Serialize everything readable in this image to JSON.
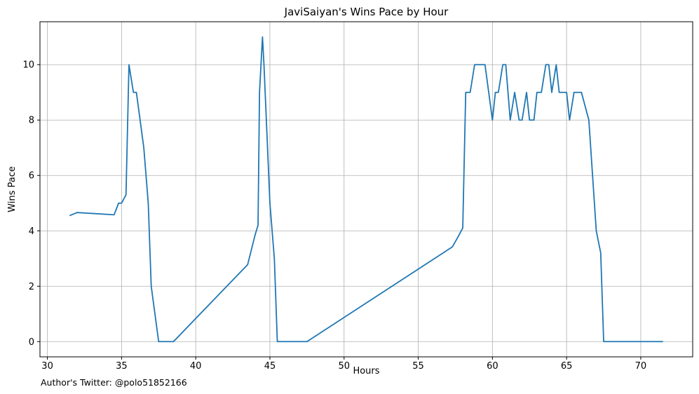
{
  "chart_data": {
    "type": "line",
    "title": "JaviSaiyan's Wins Pace by Hour",
    "xlabel": "Hours",
    "ylabel": "Wins Pace",
    "xlim": [
      29.5,
      73.5
    ],
    "ylim": [
      -0.55,
      11.55
    ],
    "xticks": [
      30,
      35,
      40,
      45,
      50,
      55,
      60,
      65,
      70
    ],
    "yticks": [
      0,
      2,
      4,
      6,
      8,
      10
    ],
    "grid": true,
    "line_color": "#1f77b4",
    "series": [
      {
        "x": [
          31.5,
          32.0,
          34.5,
          34.8,
          35.0,
          35.3,
          35.5,
          35.8,
          36.0,
          36.5,
          36.8,
          37.0,
          37.5,
          38.5,
          43.5,
          44.0,
          44.2,
          44.3,
          44.5,
          44.6,
          45.0,
          45.3,
          45.5,
          47.5,
          57.3,
          57.7,
          58.0,
          58.2,
          58.5,
          58.8,
          59.0,
          59.5,
          60.0,
          60.2,
          60.4,
          60.7,
          60.9,
          61.2,
          61.5,
          61.8,
          62.0,
          62.3,
          62.5,
          62.8,
          63.0,
          63.3,
          63.6,
          63.8,
          64.0,
          64.3,
          64.5,
          65.0,
          65.2,
          65.5,
          65.7,
          66.0,
          66.5,
          67.0,
          67.3,
          67.5,
          71.5
        ],
        "y": [
          4.55,
          4.66,
          4.58,
          5.0,
          5.0,
          5.3,
          10.0,
          9.0,
          9.0,
          7.0,
          5.0,
          2.0,
          0.0,
          0.0,
          2.78,
          3.85,
          4.2,
          9.0,
          11.0,
          10.0,
          5.0,
          3.0,
          0.0,
          0.0,
          3.42,
          3.8,
          4.1,
          9.0,
          9.0,
          10.0,
          10.0,
          10.0,
          8.0,
          9.0,
          9.0,
          10.0,
          10.0,
          8.0,
          9.0,
          8.0,
          8.0,
          9.0,
          8.0,
          8.0,
          9.0,
          9.0,
          10.0,
          10.0,
          9.0,
          10.0,
          9.0,
          9.0,
          8.0,
          9.0,
          9.0,
          9.0,
          8.0,
          4.0,
          3.2,
          0.0,
          0.0
        ]
      }
    ]
  },
  "footnote": "Author's Twitter: @polo51852166"
}
